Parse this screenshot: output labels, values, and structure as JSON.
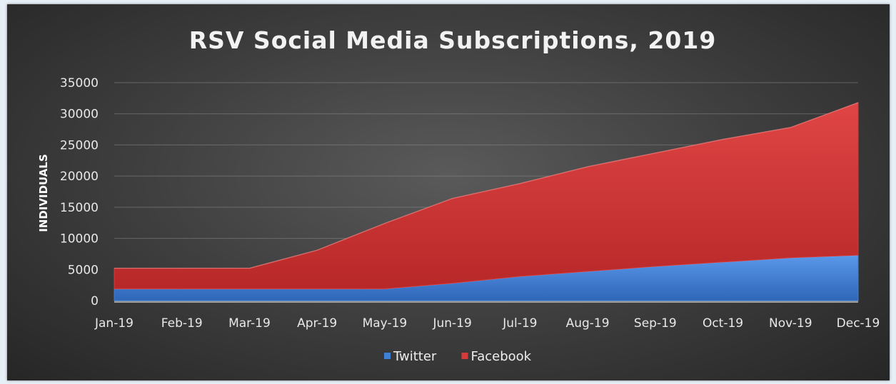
{
  "chart_data": {
    "type": "area",
    "stacked": true,
    "title": "RSV Social Media Subscriptions, 2019",
    "ylabel": "INDIVIDUALS",
    "xlabel": "",
    "categories": [
      "Jan-19",
      "Feb-19",
      "Mar-19",
      "Apr-19",
      "May-19",
      "Jun-19",
      "Jul-19",
      "Aug-19",
      "Sep-19",
      "Oct-19",
      "Nov-19",
      "Dec-19"
    ],
    "y_ticks": [
      "0",
      "5000",
      "10000",
      "15000",
      "20000",
      "25000",
      "30000",
      "35000"
    ],
    "ylim": [
      0,
      35000
    ],
    "grid": true,
    "legend_position": "bottom",
    "series": [
      {
        "name": "Twitter",
        "color": "#3f7fd6",
        "values": [
          1900,
          1900,
          1900,
          1900,
          1900,
          2800,
          3900,
          4700,
          5500,
          6200,
          6900,
          7300
        ]
      },
      {
        "name": "Facebook",
        "color": "#d63a3a",
        "values": [
          3300,
          3300,
          3300,
          6200,
          10500,
          13600,
          14900,
          16800,
          18200,
          19700,
          20900,
          24500
        ]
      }
    ]
  }
}
